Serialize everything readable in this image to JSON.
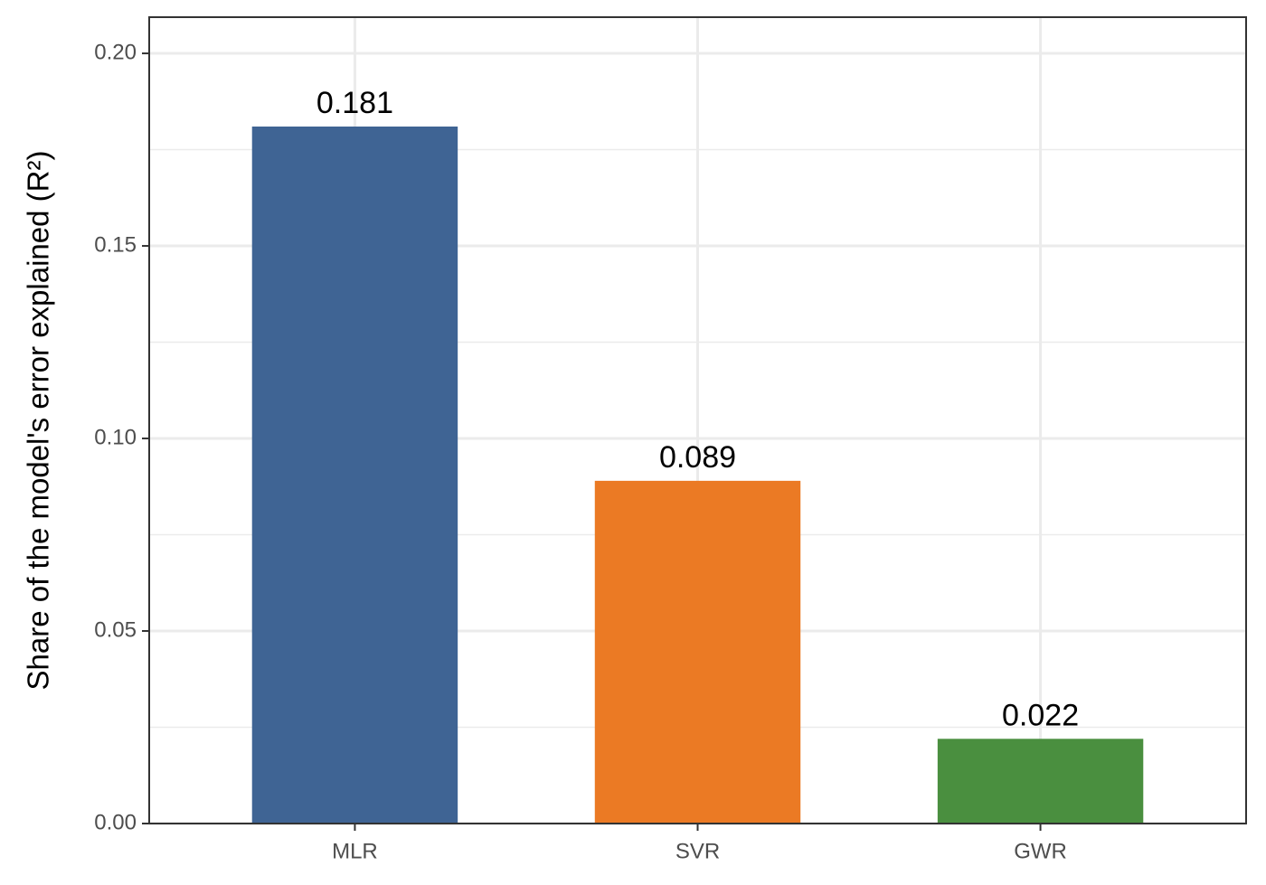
{
  "chart_data": {
    "type": "bar",
    "y_label": "Share of the model's error explained (R²)",
    "categories": [
      "MLR",
      "SVR",
      "GWR"
    ],
    "values": [
      0.181,
      0.089,
      0.022
    ],
    "colors": [
      "#3f6494",
      "#eb7a24",
      "#4a8f3f"
    ],
    "ylim": [
      0,
      0.2094
    ],
    "yticks": [
      {
        "value": 0,
        "label": "0.00"
      },
      0.05,
      {
        "value": 0.1,
        "label": "0.10"
      },
      0.15,
      {
        "value": 0.2,
        "label": "0.20"
      }
    ],
    "grid": true
  }
}
